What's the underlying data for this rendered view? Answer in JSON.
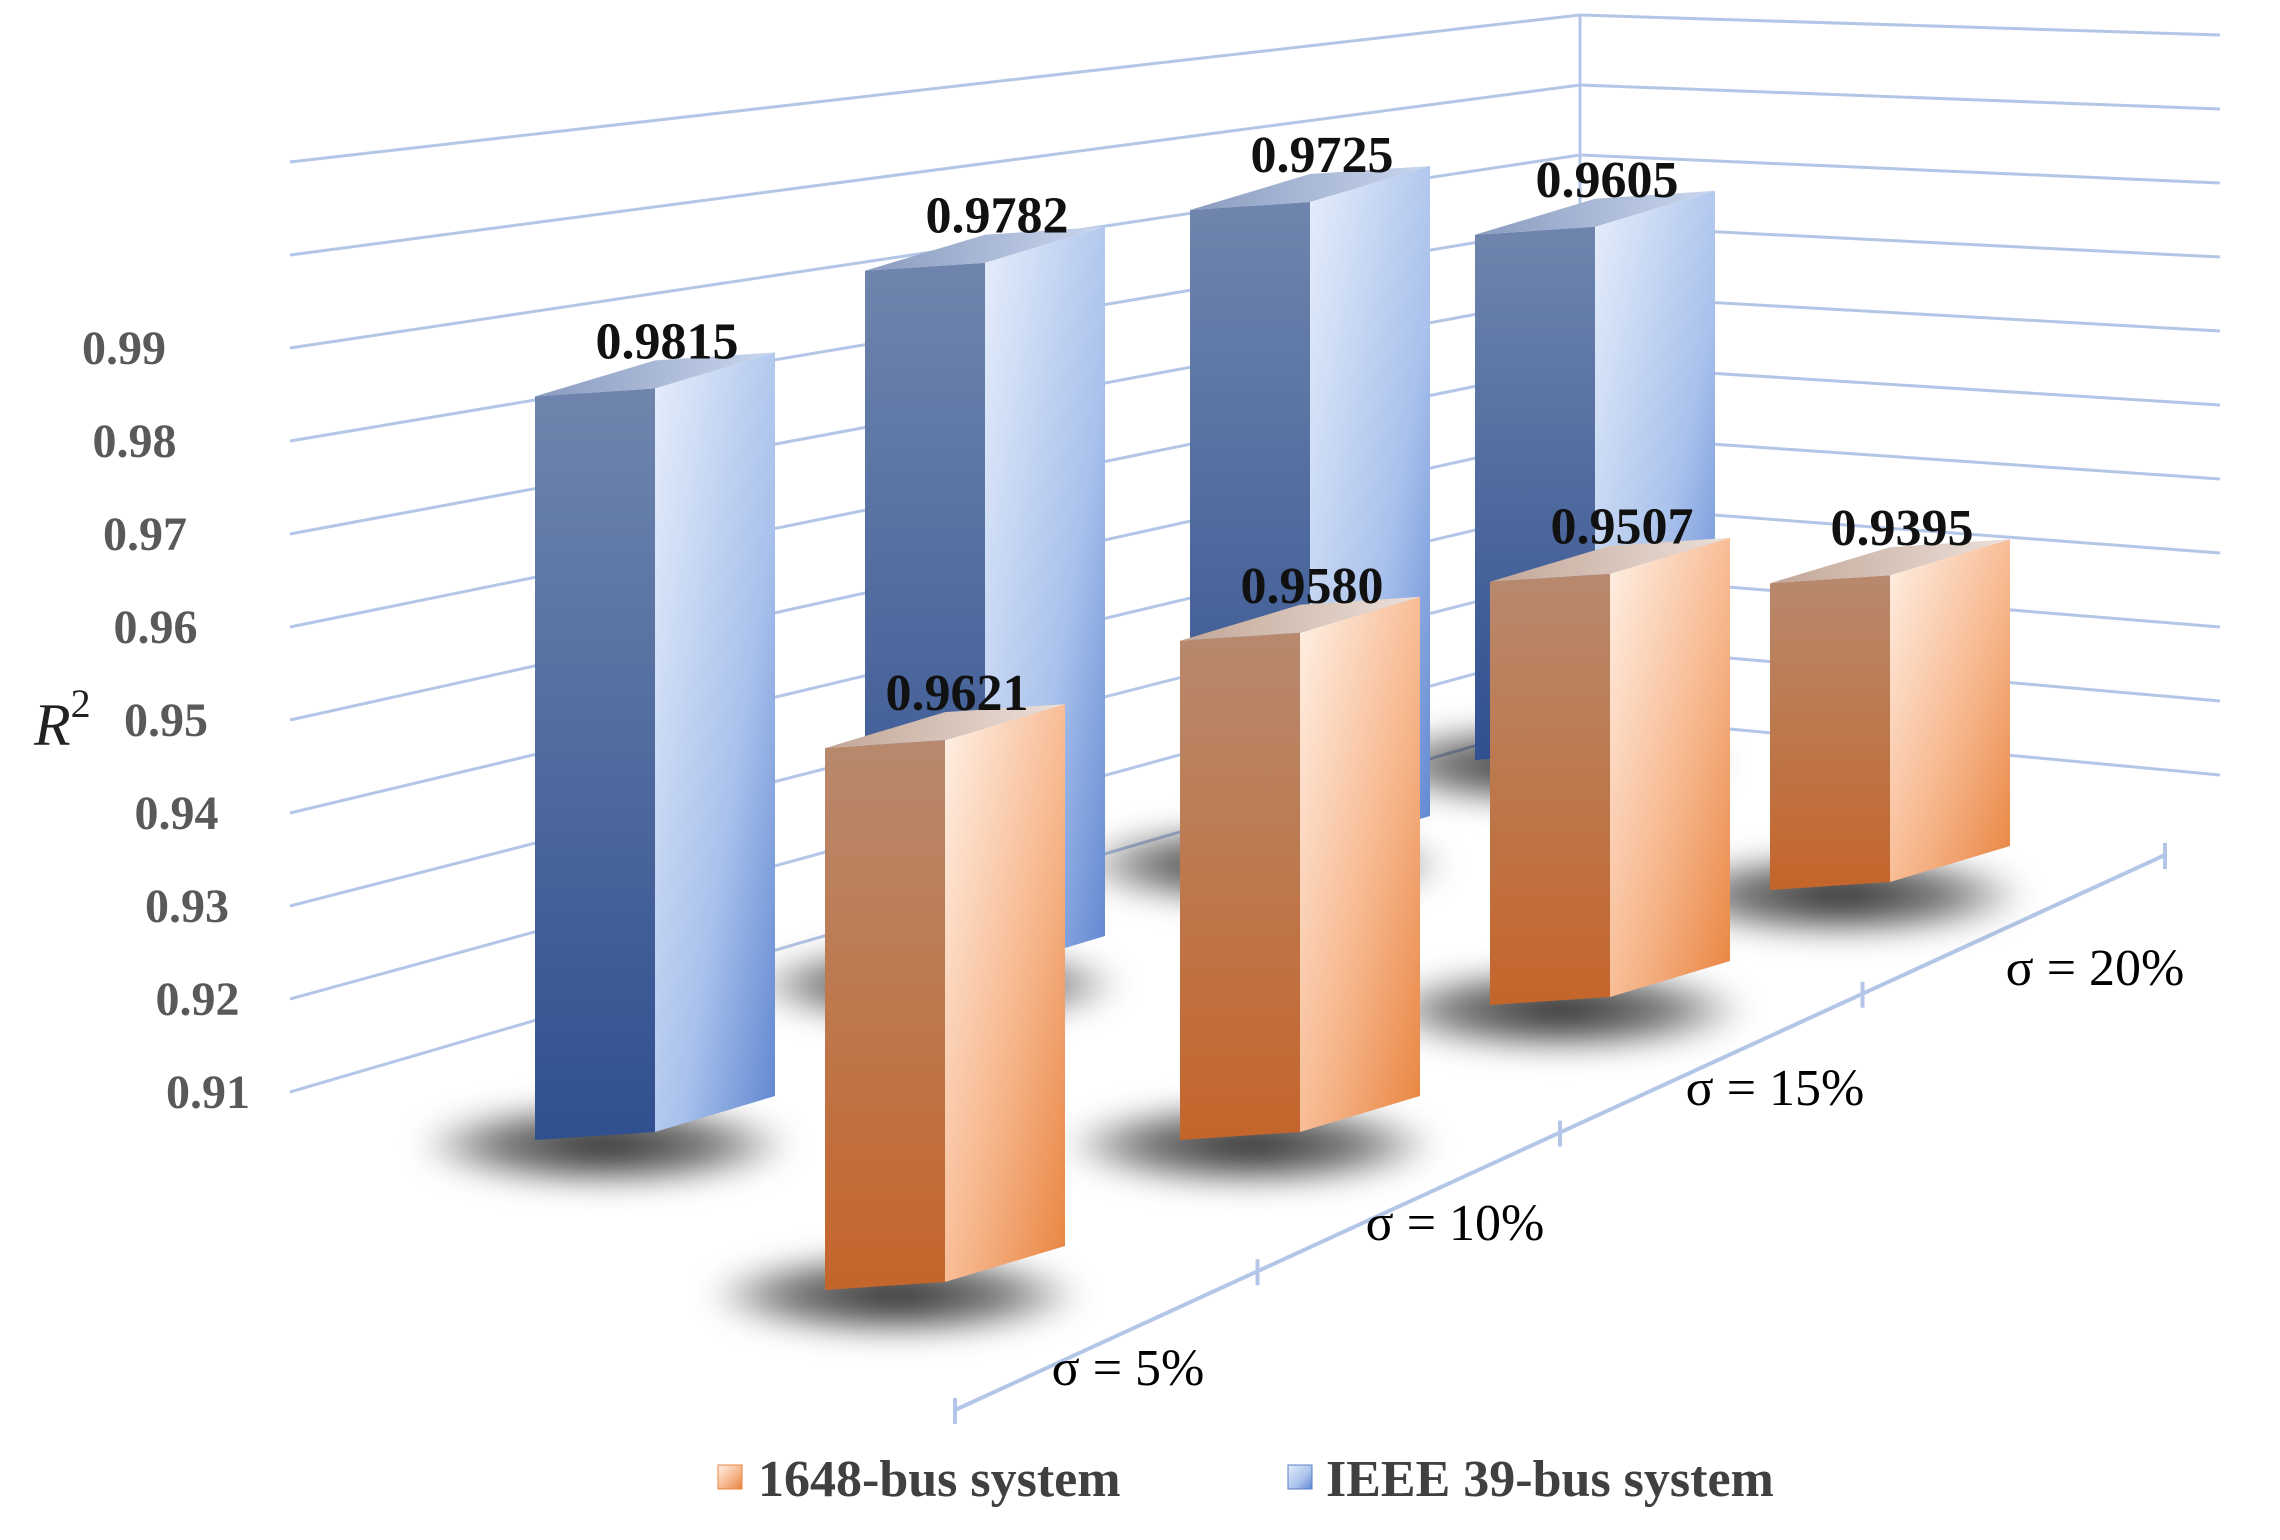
{
  "chart_data": {
    "type": "bar",
    "subtype": "3d-clustered-column",
    "title": "",
    "ylabel": "R",
    "ylabel_superscript": "2",
    "ylim": [
      0.91,
      0.99
    ],
    "yticks": [
      "0.91",
      "0.92",
      "0.93",
      "0.94",
      "0.95",
      "0.96",
      "0.97",
      "0.98",
      "0.99"
    ],
    "categories": [
      "σ = 5%",
      "σ = 10%",
      "σ = 15%",
      "σ = 20%"
    ],
    "series": [
      {
        "name": "IEEE 39-bus system",
        "values": [
          0.9815,
          0.9782,
          0.9725,
          0.9605
        ],
        "labels": [
          "0.9815",
          "0.9782",
          "0.9725",
          "0.9605"
        ],
        "color": "#5b7fc7"
      },
      {
        "name": "1648-bus system",
        "values": [
          0.9621,
          0.958,
          0.9507,
          0.9395
        ],
        "labels": [
          "0.9621",
          "0.9580",
          "0.9507",
          "0.9395"
        ],
        "color": "#e8843f"
      }
    ],
    "legend_position": "bottom",
    "grid": true
  }
}
